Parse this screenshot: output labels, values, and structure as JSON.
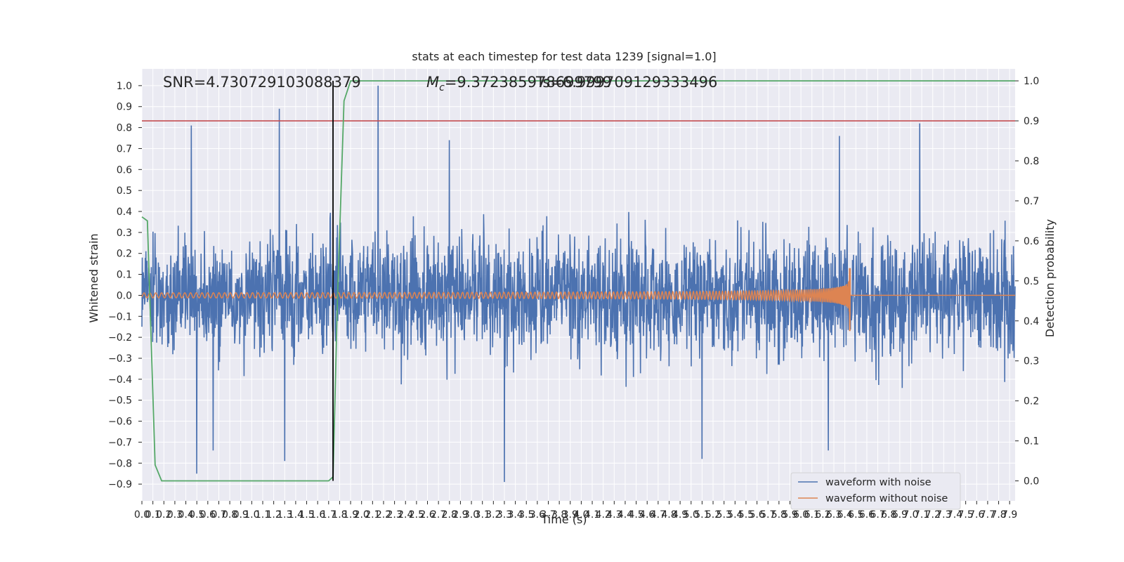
{
  "chart_data": {
    "type": "line",
    "title": "stats at each timestep for test data 1239 [signal=1.0]",
    "xlabel": "Time (s)",
    "ylabel": "Whitened strain",
    "ylabel_right": "Detection probability",
    "xlim": [
      0.0,
      7.95
    ],
    "ylim": [
      -0.98,
      1.08
    ],
    "ylim_right": [
      -0.05,
      1.03
    ],
    "x_ticks": [
      0.0,
      0.1,
      0.2,
      0.3,
      0.4,
      0.5,
      0.6,
      0.7,
      0.8,
      0.9,
      1.0,
      1.1,
      1.2,
      1.3,
      1.4,
      1.5,
      1.6,
      1.7,
      1.8,
      1.9,
      2.0,
      2.1,
      2.2,
      2.3,
      2.4,
      2.5,
      2.6,
      2.7,
      2.8,
      2.9,
      3.0,
      3.1,
      3.2,
      3.3,
      3.4,
      3.5,
      3.6,
      3.7,
      3.8,
      3.9,
      4.0,
      4.1,
      4.2,
      4.3,
      4.4,
      4.5,
      4.6,
      4.7,
      4.8,
      4.9,
      5.0,
      5.1,
      5.2,
      5.3,
      5.4,
      5.5,
      5.6,
      5.7,
      5.8,
      5.9,
      6.0,
      6.1,
      6.2,
      6.3,
      6.4,
      6.5,
      6.6,
      6.7,
      6.8,
      6.9,
      7.0,
      7.1,
      7.2,
      7.3,
      7.4,
      7.5,
      7.6,
      7.7,
      7.8,
      7.9
    ],
    "y_ticks_left": [
      -0.9,
      -0.8,
      -0.7,
      -0.6,
      -0.5,
      -0.4,
      -0.3,
      -0.2,
      -0.1,
      0.0,
      0.1,
      0.2,
      0.3,
      0.4,
      0.5,
      0.6,
      0.7,
      0.8,
      0.9,
      1.0
    ],
    "y_ticks_right": [
      0.0,
      0.1,
      0.2,
      0.3,
      0.4,
      0.5,
      0.6,
      0.7,
      0.8,
      0.9,
      1.0
    ],
    "annotations": {
      "snr": "SNR=4.730729103088379",
      "mc_label": "M",
      "mc_sub": "c",
      "mc_value": "=9.372385978699799",
      "overlap_text": "Ts=6.999709129333496"
    },
    "legend": {
      "position": "lower-right",
      "entries": [
        "waveform with noise",
        "waveform without noise"
      ]
    },
    "colors": {
      "noise": "#4c72b0",
      "clean": "#dd8452",
      "probability": "#55a868",
      "threshold": "#c44e52",
      "marker": "#000000",
      "background": "#eaeaf2",
      "grid": "#ffffff"
    },
    "series": [
      {
        "name": "waveform with noise",
        "axis": "left",
        "noise_band": [
          -0.45,
          0.45
        ],
        "peaks": [
          {
            "x": 0.45,
            "y": 0.81
          },
          {
            "x": 1.25,
            "y": 0.89
          },
          {
            "x": 2.15,
            "y": 1.0
          },
          {
            "x": 7.08,
            "y": 0.82
          },
          {
            "x": 6.35,
            "y": 0.76
          },
          {
            "x": 2.8,
            "y": 0.74
          },
          {
            "x": 0.5,
            "y": -0.85
          },
          {
            "x": 3.3,
            "y": -0.89
          },
          {
            "x": 1.3,
            "y": -0.79
          },
          {
            "x": 5.1,
            "y": -0.78
          },
          {
            "x": 6.25,
            "y": -0.74
          },
          {
            "x": 0.65,
            "y": -0.74
          }
        ]
      },
      {
        "name": "waveform without noise",
        "axis": "left",
        "merger_time": 6.45,
        "peak_amplitude": [
          0.13,
          -0.17
        ]
      },
      {
        "axis": "right",
        "x": [
          0.0,
          0.05,
          0.12,
          0.18,
          1.7,
          1.74,
          1.78,
          1.84,
          1.9,
          7.95
        ],
        "y": [
          0.66,
          0.65,
          0.04,
          0.0,
          0.0,
          0.01,
          0.45,
          0.95,
          1.0,
          1.0
        ]
      }
    ],
    "threshold_right": 0.9,
    "vertical_marker_x": 1.74,
    "vertical_marker_range_right": [
      0.0,
      1.0
    ]
  }
}
